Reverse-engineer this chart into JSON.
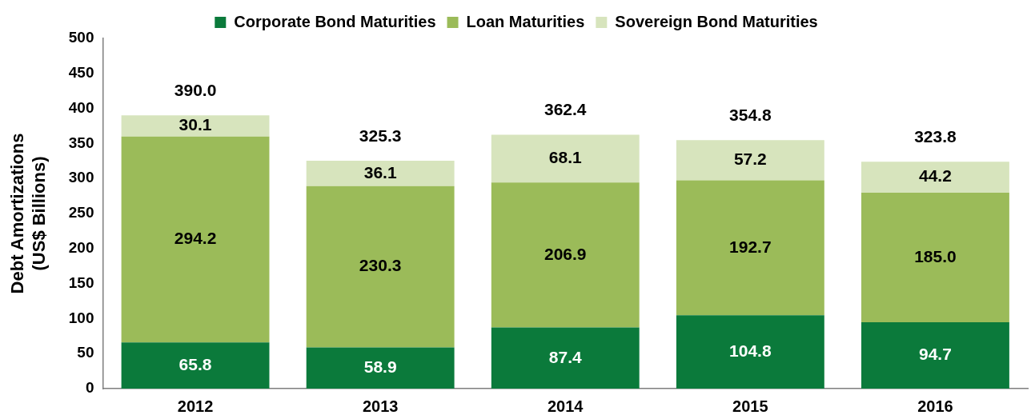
{
  "chart_data": {
    "type": "bar",
    "stacked": true,
    "categories": [
      "2012",
      "2013",
      "2014",
      "2015",
      "2016"
    ],
    "series": [
      {
        "name": "Corporate Bond Maturities",
        "color": "#0b7a3b",
        "values": [
          65.8,
          58.9,
          87.4,
          104.8,
          94.7
        ],
        "value_labels": [
          "65.8",
          "58.9",
          "87.4",
          "104.8",
          "94.7"
        ]
      },
      {
        "name": "Loan Maturities",
        "color": "#9bbb59",
        "values": [
          294.2,
          230.3,
          206.9,
          192.7,
          185.0
        ],
        "value_labels": [
          "294.2",
          "230.3",
          "206.9",
          "192.7",
          "185.0"
        ]
      },
      {
        "name": "Sovereign Bond Maturities",
        "color": "#d7e4bd",
        "values": [
          30.1,
          36.1,
          68.1,
          57.2,
          44.2
        ],
        "value_labels": [
          "30.1",
          "36.1",
          "68.1",
          "57.2",
          "44.2"
        ]
      }
    ],
    "totals": [
      "390.0",
      "325.3",
      "362.4",
      "354.8",
      "323.8"
    ],
    "ylabel": "Debt Amortizations (US$ Billions)",
    "ylim": [
      0,
      500
    ],
    "yticks": [
      0,
      50,
      100,
      150,
      200,
      250,
      300,
      350,
      400,
      450,
      500
    ],
    "grid": false,
    "legend": "top"
  }
}
